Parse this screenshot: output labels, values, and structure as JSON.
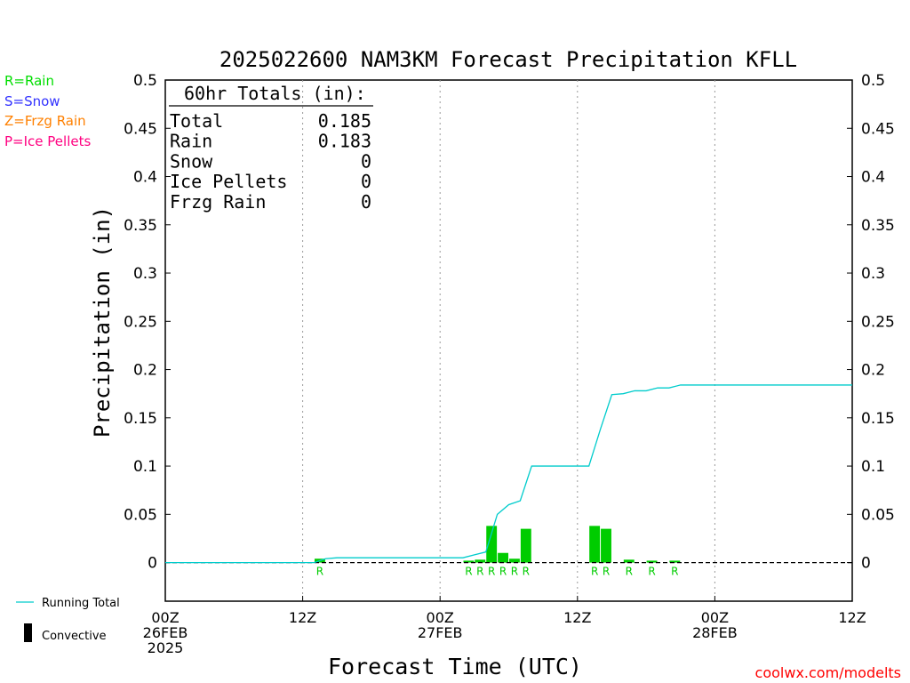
{
  "chart_data": {
    "type": "bar",
    "title": "2025022600 NAM3KM Forecast Precipitation KFLL",
    "xlabel": "Forecast Time (UTC)",
    "ylabel": "Precipitation (in)",
    "ylim": [
      -0.04,
      0.5
    ],
    "xlim_hours": [
      0,
      60
    ],
    "y_ticks": [
      0,
      0.05,
      0.1,
      0.15,
      0.2,
      0.25,
      0.3,
      0.35,
      0.4,
      0.45,
      0.5
    ],
    "y_tick_labels": [
      "0",
      "0.05",
      "0.1",
      "0.15",
      "0.2",
      "0.25",
      "0.3",
      "0.35",
      "0.4",
      "0.45",
      "0.5"
    ],
    "x_ticks": [
      {
        "hour": 0,
        "lines": [
          "00Z",
          "26FEB",
          "2025"
        ]
      },
      {
        "hour": 12,
        "lines": [
          "12Z"
        ]
      },
      {
        "hour": 24,
        "lines": [
          "00Z",
          "27FEB"
        ]
      },
      {
        "hour": 36,
        "lines": [
          "12Z"
        ]
      },
      {
        "hour": 48,
        "lines": [
          "00Z",
          "28FEB"
        ]
      },
      {
        "hour": 60,
        "lines": [
          "12Z"
        ]
      }
    ],
    "grid": "vertical dotted at 12Z/00Z",
    "legend_left": [
      {
        "text": "R=Rain",
        "color": "#00dd00"
      },
      {
        "text": "S=Snow",
        "color": "#3333ff"
      },
      {
        "text": "Z=Frzg Rain",
        "color": "#ff8000"
      },
      {
        "text": "P=Ice Pellets",
        "color": "#ff0080"
      }
    ],
    "legend_bottom": {
      "running_total": "Running Total",
      "convective": "Convective"
    },
    "totals": {
      "header": "60hr Totals (in):",
      "rows": [
        {
          "label": "Total",
          "value": "0.185"
        },
        {
          "label": "Rain",
          "value": "0.183"
        },
        {
          "label": "Snow",
          "value": "0"
        },
        {
          "label": "Ice Pellets",
          "value": "0"
        },
        {
          "label": "Frzg Rain",
          "value": "0"
        }
      ]
    },
    "series": [
      {
        "kind": "hourly_bars",
        "color": "#00cc00",
        "points": [
          {
            "hour": 14,
            "value": 0.004,
            "type": "R"
          },
          {
            "hour": 27,
            "value": 0.002,
            "type": "R"
          },
          {
            "hour": 28,
            "value": 0.003,
            "type": "R"
          },
          {
            "hour": 29,
            "value": 0.038,
            "type": "R"
          },
          {
            "hour": 30,
            "value": 0.01,
            "type": "R"
          },
          {
            "hour": 31,
            "value": 0.004,
            "type": "R"
          },
          {
            "hour": 32,
            "value": 0.035,
            "type": "R"
          },
          {
            "hour": 38,
            "value": 0.038,
            "type": "R"
          },
          {
            "hour": 39,
            "value": 0.035,
            "type": "R"
          },
          {
            "hour": 41,
            "value": 0.003,
            "type": "R"
          },
          {
            "hour": 43,
            "value": 0.002,
            "type": "R"
          },
          {
            "hour": 45,
            "value": 0.002,
            "type": "R"
          }
        ]
      },
      {
        "kind": "running_total",
        "color": "#00cccc",
        "points": [
          [
            0,
            0
          ],
          [
            13,
            0
          ],
          [
            14,
            0.004
          ],
          [
            15,
            0.005
          ],
          [
            26,
            0.005
          ],
          [
            27,
            0.008
          ],
          [
            28,
            0.011
          ],
          [
            29,
            0.05
          ],
          [
            30,
            0.06
          ],
          [
            31,
            0.064
          ],
          [
            32,
            0.1
          ],
          [
            36,
            0.1
          ],
          [
            37,
            0.1
          ],
          [
            38,
            0.138
          ],
          [
            39,
            0.174
          ],
          [
            40,
            0.175
          ],
          [
            41,
            0.178
          ],
          [
            42,
            0.178
          ],
          [
            43,
            0.181
          ],
          [
            44,
            0.181
          ],
          [
            45,
            0.184
          ],
          [
            60,
            0.184
          ]
        ]
      }
    ]
  },
  "footer": {
    "source": "coolwx.com/modelts"
  }
}
